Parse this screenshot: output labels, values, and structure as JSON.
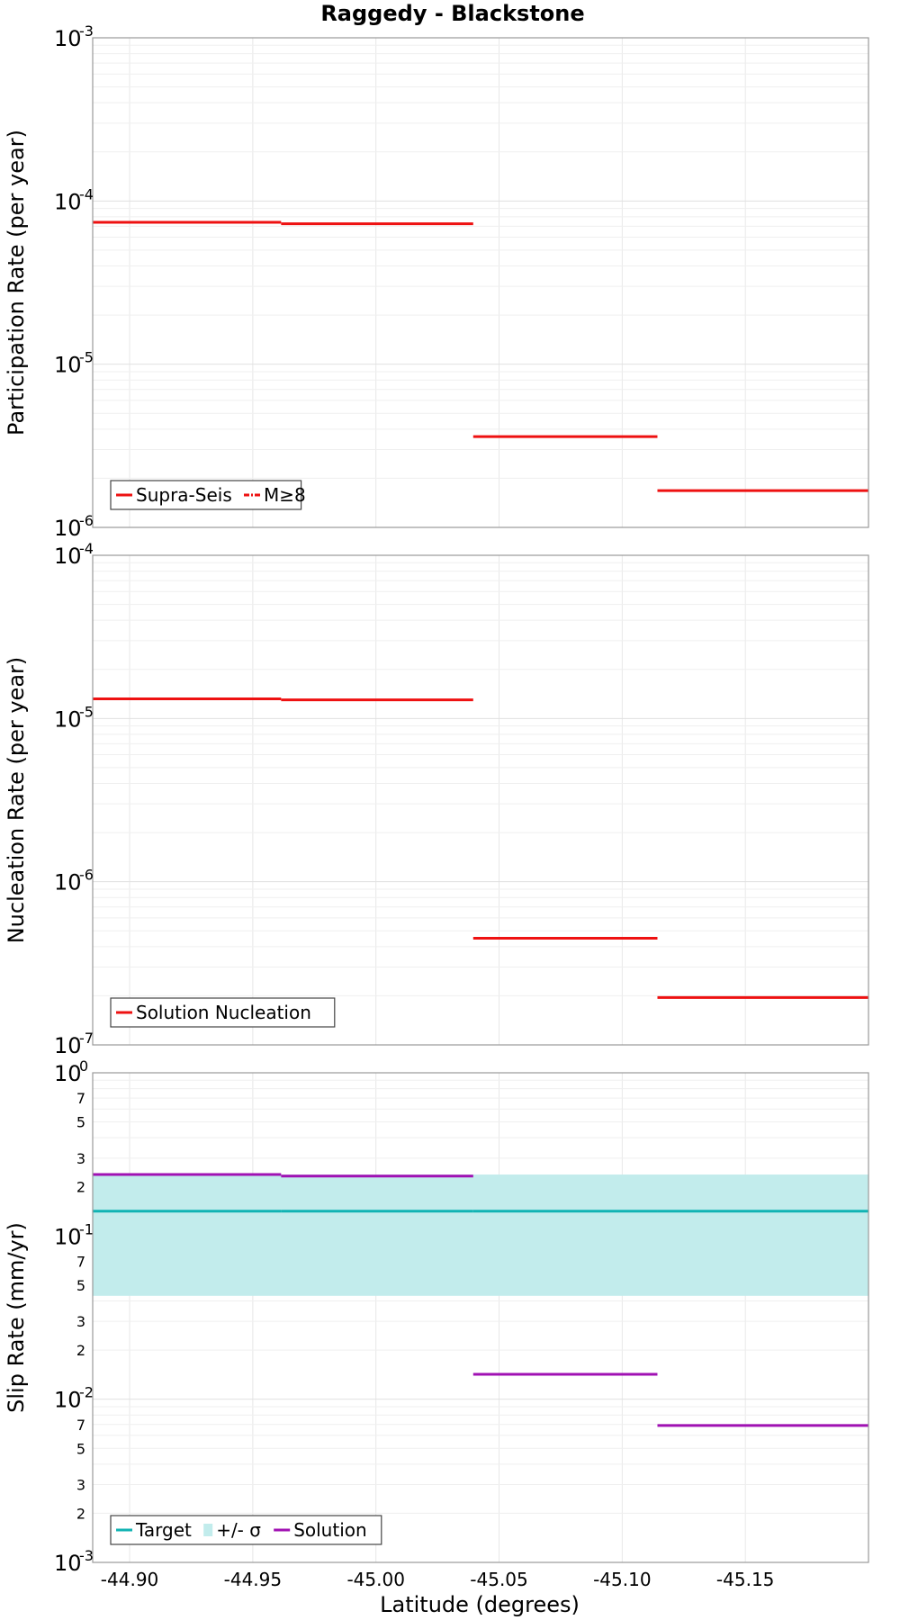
{
  "chart_data": {
    "type": "line",
    "title": "Raggedy - Blackstone",
    "xlabel": "Latitude (degrees)",
    "xlim": [
      -44.885,
      -45.2
    ],
    "x_ticks": [
      -44.9,
      -44.95,
      -45.0,
      -45.05,
      -45.1,
      -45.15
    ],
    "x_tick_labels": [
      "-44.90",
      "-44.95",
      "-45.00",
      "-45.05",
      "-45.10",
      "-45.15"
    ],
    "segment_edges": [
      -44.885,
      -44.9615,
      -45.0395,
      -45.1143,
      -45.2
    ],
    "grid": true,
    "panels": [
      {
        "ylabel": "Participation Rate (per year)",
        "yscale": "log",
        "ylim": [
          1e-06,
          0.001
        ],
        "major_ticks": [
          {
            "base": "10",
            "exp": "-6"
          },
          {
            "base": "10",
            "exp": "-5"
          },
          {
            "base": "10",
            "exp": "-4"
          },
          {
            "base": "10",
            "exp": "-3"
          }
        ],
        "minor_labels": [],
        "legend": {
          "placement": "bottom-left",
          "entries": [
            {
              "label": "Supra-Seis",
              "color": "#ee1111",
              "style": "solid"
            },
            {
              "label": "M≥8",
              "color": "#ee1111",
              "style": "dashdot"
            }
          ]
        },
        "series": [
          {
            "name": "Supra-Seis",
            "color": "#ee1111",
            "values": [
              7.4e-05,
              7.25e-05,
              3.6e-06,
              1.68e-06
            ]
          }
        ]
      },
      {
        "ylabel": "Nucleation Rate (per year)",
        "yscale": "log",
        "ylim": [
          1e-07,
          0.0001
        ],
        "major_ticks": [
          {
            "base": "10",
            "exp": "-7"
          },
          {
            "base": "10",
            "exp": "-6"
          },
          {
            "base": "10",
            "exp": "-5"
          },
          {
            "base": "10",
            "exp": "-4"
          }
        ],
        "minor_labels": [],
        "legend": {
          "placement": "bottom-left",
          "entries": [
            {
              "label": "Solution Nucleation",
              "color": "#ee1111",
              "style": "solid"
            }
          ]
        },
        "series": [
          {
            "name": "Solution Nucleation",
            "color": "#ee1111",
            "values": [
              1.32e-05,
              1.3e-05,
              4.5e-07,
              1.95e-07
            ]
          }
        ]
      },
      {
        "ylabel": "Slip Rate (mm/yr)",
        "yscale": "log",
        "ylim": [
          0.001,
          1
        ],
        "major_ticks": [
          {
            "base": "10",
            "exp": "-3"
          },
          {
            "base": "10",
            "exp": "-2"
          },
          {
            "base": "10",
            "exp": "-1"
          },
          {
            "base": "10",
            "exp": "0"
          }
        ],
        "minor_labels": [
          "2",
          "3",
          "5",
          "7"
        ],
        "legend": {
          "placement": "bottom-left",
          "entries": [
            {
              "label": "Target",
              "color": "#11b3b3",
              "style": "solid"
            },
            {
              "label": "+/- σ",
              "color": "#c2ecec",
              "style": "band"
            },
            {
              "label": "Solution",
              "color": "#a011b3",
              "style": "solid"
            }
          ]
        },
        "band": {
          "name": "+/- σ",
          "color": "#c2ecec",
          "lower": 0.043,
          "upper": 0.238
        },
        "series": [
          {
            "name": "Target",
            "color": "#11b3b3",
            "values": [
              0.142,
              0.142,
              0.142,
              0.142
            ]
          },
          {
            "name": "Solution",
            "color": "#a011b3",
            "values": [
              0.238,
              0.233,
              0.0142,
              0.0069
            ]
          }
        ]
      }
    ]
  }
}
